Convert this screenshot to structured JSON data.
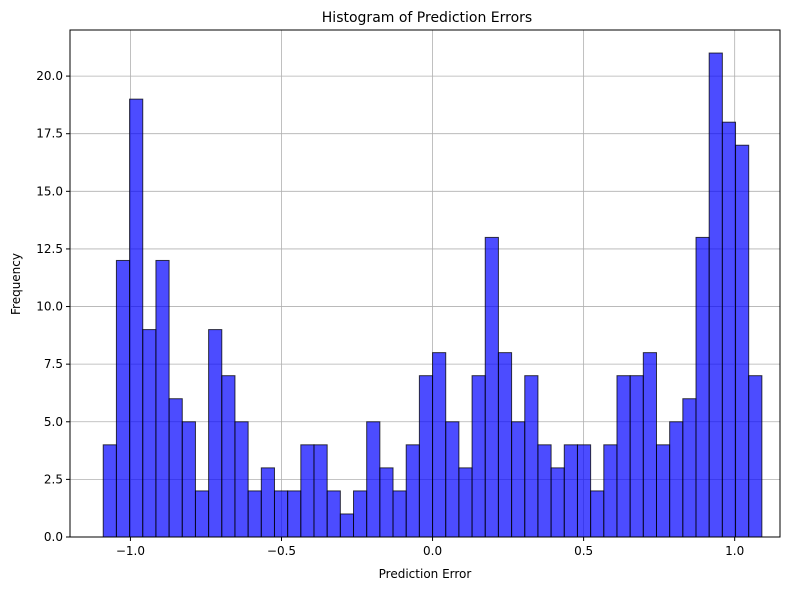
{
  "chart_data": {
    "type": "bar",
    "title": "Histogram of Prediction Errors",
    "xlabel": "Prediction Error",
    "ylabel": "Frequency",
    "xlim": [
      -1.2,
      1.15
    ],
    "ylim": [
      0,
      22
    ],
    "grid": true,
    "bar_color": "#0000ff",
    "bar_opacity": 0.7,
    "edge_color": "#000000",
    "bins": {
      "start": -1.09,
      "width": 0.0436,
      "counts": [
        4,
        12,
        19,
        9,
        12,
        6,
        5,
        2,
        9,
        7,
        5,
        2,
        3,
        2,
        2,
        4,
        4,
        2,
        1,
        2,
        5,
        3,
        2,
        4,
        7,
        8,
        5,
        3,
        7,
        13,
        8,
        5,
        7,
        4,
        3,
        4,
        4,
        2,
        4,
        7,
        7,
        8,
        4,
        5,
        6,
        13,
        21,
        18,
        17,
        7
      ]
    },
    "x_ticks": [
      {
        "value": -1.0,
        "label": "−1.0"
      },
      {
        "value": -0.5,
        "label": "−0.5"
      },
      {
        "value": 0.0,
        "label": "0.0"
      },
      {
        "value": 0.5,
        "label": "0.5"
      },
      {
        "value": 1.0,
        "label": "1.0"
      }
    ],
    "y_ticks": [
      {
        "value": 0,
        "label": "0.0"
      },
      {
        "value": 2.5,
        "label": "2.5"
      },
      {
        "value": 5,
        "label": "5.0"
      },
      {
        "value": 7.5,
        "label": "7.5"
      },
      {
        "value": 10,
        "label": "10.0"
      },
      {
        "value": 12.5,
        "label": "12.5"
      },
      {
        "value": 15,
        "label": "15.0"
      },
      {
        "value": 17.5,
        "label": "17.5"
      },
      {
        "value": 20,
        "label": "20.0"
      }
    ]
  }
}
